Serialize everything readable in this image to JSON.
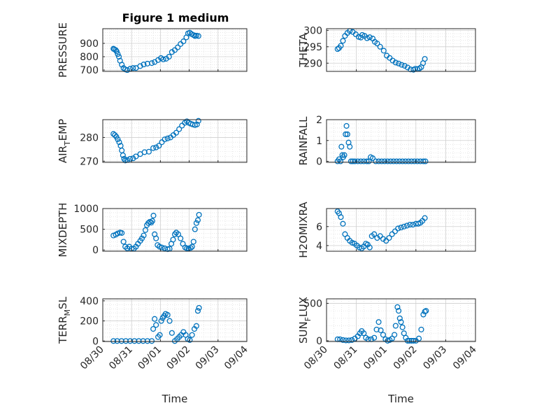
{
  "figure_title": "Figure 1 medium",
  "colors": {
    "marker": "#0072BD",
    "axis": "#262626",
    "grid": "#d8d8d8"
  },
  "chart_data": [
    {
      "id": "pressure",
      "type": "scatter",
      "ylabel": "PRESSURE",
      "ylabel_sub": "",
      "ylabel_post": "",
      "xlabel": "",
      "xlim": [
        "08/30",
        "09/04"
      ],
      "ylim": [
        690,
        1010
      ],
      "yticks": [
        700,
        800,
        900
      ],
      "xtick_labels": [
        "",
        "",
        "",
        "",
        "",
        ""
      ],
      "grid": true,
      "x": [
        0.37,
        0.4,
        0.45,
        0.48,
        0.52,
        0.56,
        0.6,
        0.66,
        0.72,
        0.78,
        0.85,
        0.95,
        1.05,
        1.15,
        1.3,
        1.42,
        1.55,
        1.7,
        1.8,
        1.92,
        2.02,
        2.1,
        2.2,
        2.3,
        2.4,
        2.5,
        2.6,
        2.7,
        2.8,
        2.9,
        2.96,
        3.02,
        3.08,
        3.15,
        3.2,
        3.25,
        3.32
      ],
      "y": [
        860,
        855,
        850,
        840,
        820,
        800,
        770,
        740,
        715,
        705,
        700,
        710,
        715,
        715,
        730,
        742,
        748,
        752,
        760,
        775,
        790,
        780,
        785,
        800,
        835,
        850,
        870,
        895,
        915,
        945,
        975,
        980,
        970,
        962,
        955,
        958,
        955
      ]
    },
    {
      "id": "theta",
      "type": "scatter",
      "ylabel": "THETA",
      "ylabel_sub": "",
      "ylabel_post": "",
      "xlabel": "",
      "xlim": [
        "08/30",
        "09/04"
      ],
      "ylim": [
        287.5,
        300.5
      ],
      "yticks": [
        290,
        295,
        300
      ],
      "xtick_labels": [
        "",
        "",
        "",
        "",
        "",
        ""
      ],
      "grid": true,
      "x": [
        0.37,
        0.42,
        0.48,
        0.55,
        0.62,
        0.7,
        0.78,
        0.88,
        0.98,
        1.08,
        1.15,
        1.2,
        1.28,
        1.36,
        1.45,
        1.55,
        1.62,
        1.7,
        1.8,
        1.92,
        2.02,
        2.12,
        2.22,
        2.32,
        2.42,
        2.52,
        2.62,
        2.72,
        2.82,
        2.92,
        2.98,
        3.05,
        3.12,
        3.18,
        3.24,
        3.3
      ],
      "y": [
        294.3,
        294.6,
        295.3,
        296.8,
        298.3,
        299.2,
        299.8,
        299.5,
        298.8,
        298.0,
        297.8,
        298.6,
        298.3,
        297.6,
        297.9,
        297.5,
        296.5,
        296.0,
        295.0,
        293.8,
        292.3,
        291.6,
        290.8,
        290.2,
        289.9,
        289.5,
        289.2,
        288.7,
        288.1,
        288.0,
        288.3,
        288.2,
        288.4,
        288.8,
        290.0,
        291.3
      ]
    },
    {
      "id": "airtemp",
      "type": "scatter",
      "ylabel": "AIR",
      "ylabel_sub": "T",
      "ylabel_post": "EMP",
      "xlabel": "",
      "xlim": [
        "08/30",
        "09/04"
      ],
      "ylim": [
        269.5,
        287.5
      ],
      "yticks": [
        270,
        280
      ],
      "xtick_labels": [
        "",
        "",
        "",
        "",
        "",
        ""
      ],
      "grid": true,
      "x": [
        0.37,
        0.42,
        0.47,
        0.52,
        0.57,
        0.62,
        0.66,
        0.7,
        0.74,
        0.78,
        0.85,
        0.95,
        1.05,
        1.15,
        1.3,
        1.45,
        1.6,
        1.75,
        1.85,
        1.95,
        2.05,
        2.15,
        2.25,
        2.35,
        2.45,
        2.55,
        2.65,
        2.75,
        2.85,
        2.92,
        2.98,
        3.05,
        3.12,
        3.2,
        3.27,
        3.32
      ],
      "y": [
        281.5,
        281,
        280.3,
        279.2,
        278,
        276.5,
        274.5,
        272.5,
        271,
        270.3,
        270.5,
        271,
        271.2,
        272,
        273,
        273.8,
        274,
        275.5,
        275.8,
        276.5,
        278,
        279.2,
        279.6,
        280,
        281,
        282,
        283.5,
        285,
        286.2,
        286.8,
        286.2,
        285.8,
        285.5,
        285.2,
        285.5,
        287
      ]
    },
    {
      "id": "rainfall",
      "type": "scatter",
      "ylabel": "RAINFALL",
      "ylabel_sub": "",
      "ylabel_post": "",
      "xlabel": "",
      "xlim": [
        "08/30",
        "09/04"
      ],
      "ylim": [
        -0.05,
        2
      ],
      "yticks": [
        0,
        1,
        2
      ],
      "xtick_labels": [
        "",
        "",
        "",
        "",
        "",
        ""
      ],
      "grid": true,
      "x": [
        0.37,
        0.42,
        0.47,
        0.5,
        0.53,
        0.56,
        0.6,
        0.64,
        0.67,
        0.7,
        0.74,
        0.78,
        0.82,
        0.88,
        0.95,
        1.05,
        1.15,
        1.25,
        1.35,
        1.42,
        1.48,
        1.55,
        1.65,
        1.75,
        1.85,
        1.95,
        2.05,
        2.15,
        2.25,
        2.35,
        2.45,
        2.55,
        2.65,
        2.75,
        2.85,
        2.95,
        3.05,
        3.15,
        3.25,
        3.32
      ],
      "y": [
        0,
        0.1,
        0,
        0.7,
        0.3,
        0.2,
        0.3,
        1.3,
        1.7,
        1.3,
        0.9,
        0.7,
        0,
        0,
        0,
        0,
        0,
        0,
        0,
        0,
        0.2,
        0.15,
        0,
        0,
        0,
        0,
        0,
        0,
        0,
        0,
        0,
        0,
        0,
        0,
        0,
        0,
        0,
        0,
        0,
        0
      ]
    },
    {
      "id": "mixdepth",
      "type": "scatter",
      "ylabel": "MIXDEPTH",
      "ylabel_sub": "",
      "ylabel_post": "",
      "xlabel": "",
      "xlim": [
        "08/30",
        "09/04"
      ],
      "ylim": [
        -30,
        1000
      ],
      "yticks": [
        0,
        500,
        1000
      ],
      "xtick_labels": [
        "",
        "",
        "",
        "",
        "",
        ""
      ],
      "grid": true,
      "x": [
        0.37,
        0.45,
        0.52,
        0.6,
        0.66,
        0.72,
        0.78,
        0.85,
        0.92,
        1.0,
        1.08,
        1.15,
        1.22,
        1.3,
        1.36,
        1.42,
        1.48,
        1.53,
        1.58,
        1.63,
        1.68,
        1.72,
        1.76,
        1.8,
        1.85,
        1.9,
        1.97,
        2.05,
        2.15,
        2.25,
        2.32,
        2.38,
        2.44,
        2.5,
        2.55,
        2.62,
        2.7,
        2.78,
        2.86,
        2.92,
        2.98,
        3.05,
        3.1,
        3.15,
        3.2,
        3.25,
        3.3,
        3.34
      ],
      "y": [
        350,
        370,
        400,
        420,
        410,
        200,
        80,
        40,
        80,
        30,
        30,
        80,
        150,
        220,
        280,
        350,
        480,
        600,
        650,
        680,
        660,
        700,
        830,
        380,
        280,
        120,
        80,
        60,
        40,
        20,
        30,
        150,
        250,
        380,
        420,
        380,
        280,
        150,
        60,
        40,
        40,
        50,
        80,
        200,
        500,
        650,
        720,
        850
      ]
    },
    {
      "id": "h2omixra",
      "type": "scatter",
      "ylabel": "H2OMIXRA",
      "ylabel_sub": "",
      "ylabel_post": "",
      "xlabel": "",
      "xlim": [
        "08/30",
        "09/04"
      ],
      "ylim": [
        3.4,
        7.9
      ],
      "yticks": [
        4,
        6
      ],
      "xtick_labels": [
        "",
        "",
        "",
        "",
        "",
        ""
      ],
      "grid": true,
      "x": [
        0.37,
        0.42,
        0.48,
        0.55,
        0.62,
        0.7,
        0.78,
        0.86,
        0.94,
        1.02,
        1.1,
        1.18,
        1.25,
        1.32,
        1.38,
        1.45,
        1.52,
        1.6,
        1.7,
        1.8,
        1.9,
        2.0,
        2.1,
        2.2,
        2.3,
        2.4,
        2.5,
        2.6,
        2.7,
        2.8,
        2.9,
        3.0,
        3.08,
        3.15,
        3.22,
        3.3
      ],
      "y": [
        7.6,
        7.4,
        7.0,
        6.3,
        5.2,
        4.8,
        4.5,
        4.3,
        4.2,
        4.0,
        3.8,
        3.7,
        3.9,
        4.2,
        4.1,
        3.8,
        5.0,
        5.2,
        4.8,
        5.0,
        4.7,
        4.5,
        4.8,
        5.2,
        5.5,
        5.8,
        5.9,
        6.0,
        6.1,
        6.2,
        6.2,
        6.3,
        6.3,
        6.4,
        6.6,
        6.9
      ]
    },
    {
      "id": "terrmsl",
      "type": "scatter",
      "ylabel": "TERR",
      "ylabel_sub": "M",
      "ylabel_post": "SL",
      "xlabel": "Time",
      "xlim": [
        "08/30",
        "09/04"
      ],
      "ylim": [
        -5,
        420
      ],
      "yticks": [
        0,
        200,
        400
      ],
      "xtick_labels": [
        "08/30",
        "08/31",
        "09/01",
        "09/02",
        "09/03",
        "09/04"
      ],
      "grid": true,
      "x": [
        0.37,
        0.5,
        0.65,
        0.8,
        0.95,
        1.1,
        1.25,
        1.4,
        1.55,
        1.7,
        1.75,
        1.8,
        1.85,
        1.92,
        1.98,
        2.03,
        2.08,
        2.13,
        2.18,
        2.25,
        2.32,
        2.4,
        2.5,
        2.58,
        2.65,
        2.72,
        2.8,
        2.88,
        2.95,
        3.02,
        3.1,
        3.18,
        3.25,
        3.3,
        3.34
      ],
      "y": [
        0,
        0,
        0,
        0,
        0,
        0,
        0,
        0,
        0,
        0,
        120,
        220,
        160,
        40,
        60,
        200,
        230,
        250,
        270,
        260,
        200,
        80,
        0,
        20,
        40,
        60,
        90,
        60,
        20,
        10,
        60,
        120,
        150,
        300,
        330
      ]
    },
    {
      "id": "sunflux",
      "type": "scatter",
      "ylabel": "SUN",
      "ylabel_sub": "F",
      "ylabel_post": "LUX",
      "xlabel": "Time",
      "xlim": [
        "08/30",
        "09/04"
      ],
      "ylim": [
        -10,
        560
      ],
      "yticks": [
        0,
        500
      ],
      "xtick_labels": [
        "08/30",
        "08/31",
        "09/01",
        "09/02",
        "09/03",
        "09/04"
      ],
      "grid": true,
      "x": [
        0.37,
        0.45,
        0.55,
        0.65,
        0.75,
        0.85,
        0.95,
        1.05,
        1.12,
        1.18,
        1.25,
        1.32,
        1.4,
        1.5,
        1.6,
        1.68,
        1.75,
        1.82,
        1.9,
        1.98,
        2.05,
        2.12,
        2.2,
        2.28,
        2.32,
        2.38,
        2.42,
        2.46,
        2.5,
        2.55,
        2.6,
        2.66,
        2.72,
        2.78,
        2.85,
        2.92,
        3.0,
        3.1,
        3.18,
        3.25,
        3.3,
        3.34
      ],
      "y": [
        20,
        20,
        10,
        5,
        5,
        10,
        30,
        60,
        100,
        130,
        100,
        40,
        20,
        20,
        40,
        150,
        250,
        140,
        80,
        20,
        0,
        10,
        30,
        80,
        200,
        450,
        400,
        300,
        250,
        180,
        100,
        40,
        0,
        0,
        0,
        0,
        0,
        30,
        150,
        350,
        390,
        400
      ]
    }
  ]
}
